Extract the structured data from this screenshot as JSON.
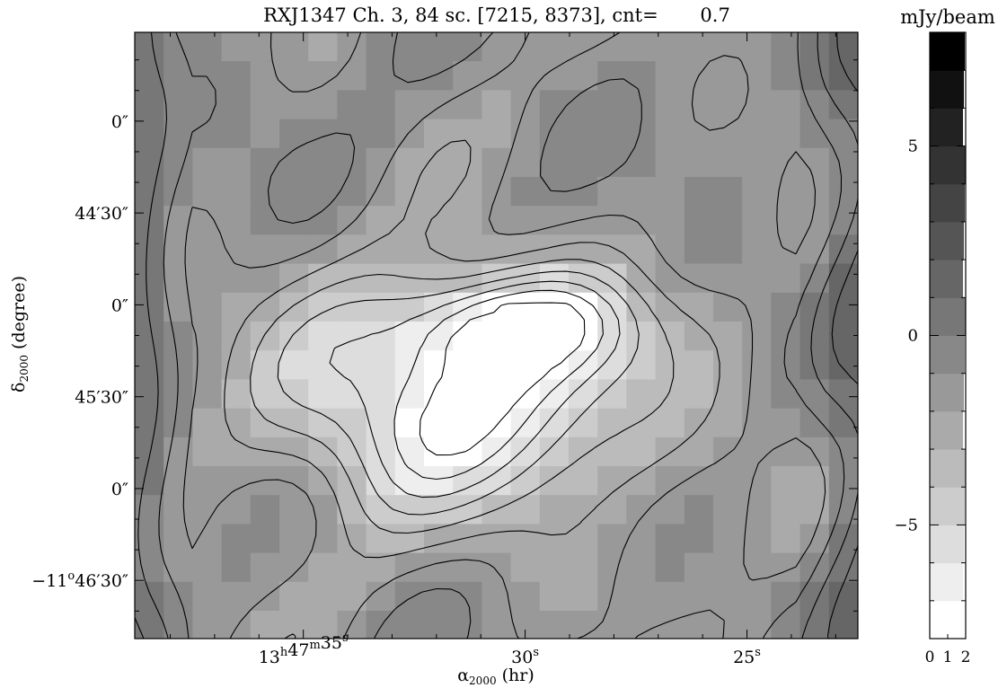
{
  "chart_data": {
    "type": "heatmap",
    "title": "RXJ1347 Ch. 3, 84 sc. [7215, 8373], cnt=       0.7",
    "x_axis": {
      "label": "α",
      "label_sub": "2000",
      "label_unit": " (hr)",
      "ticks": [
        {
          "value_s": 35,
          "h": "13",
          "m": "47",
          "s": "35"
        },
        {
          "value_s": 30,
          "h": "",
          "m": "",
          "s": "30"
        },
        {
          "value_s": 25,
          "h": "",
          "m": "",
          "s": "25"
        }
      ],
      "range_s": [
        38.8,
        22.5
      ]
    },
    "y_axis": {
      "label": "δ",
      "label_sub": "2000",
      "label_unit": " (degree)",
      "ticks": [
        {
          "arcsec": 2640,
          "text": "0″"
        },
        {
          "arcsec": 2670,
          "text": "44′30″"
        },
        {
          "arcsec": 2700,
          "text": "0″"
        },
        {
          "arcsec": 2730,
          "text": "45′30″"
        },
        {
          "arcsec": 2760,
          "text": "0″"
        },
        {
          "arcsec": 2790,
          "deg_prefix": "−11",
          "deg_mark": "o",
          "text": "46′30″"
        }
      ],
      "range_arcsec": [
        2611,
        2809
      ]
    },
    "colorbar": {
      "unit": "mJy/beam",
      "range": [
        -8,
        8
      ],
      "ticks": [
        5,
        0,
        -5
      ],
      "tick_labels": [
        "5",
        "0",
        "−5"
      ],
      "x_ticks": [
        "0",
        "1",
        "2"
      ],
      "levels": 16,
      "min_color": "#ffffff",
      "max_color": "#000000"
    },
    "contour_interval": 0.7,
    "contours_drawn": true,
    "grid": false,
    "sources": [
      {
        "ra_s": 31.5,
        "dec_arcsec": 2731,
        "peak_mJy": -7.5
      },
      {
        "ra_s": 30.2,
        "dec_arcsec": 2706,
        "peak_mJy": -5.5
      }
    ]
  }
}
